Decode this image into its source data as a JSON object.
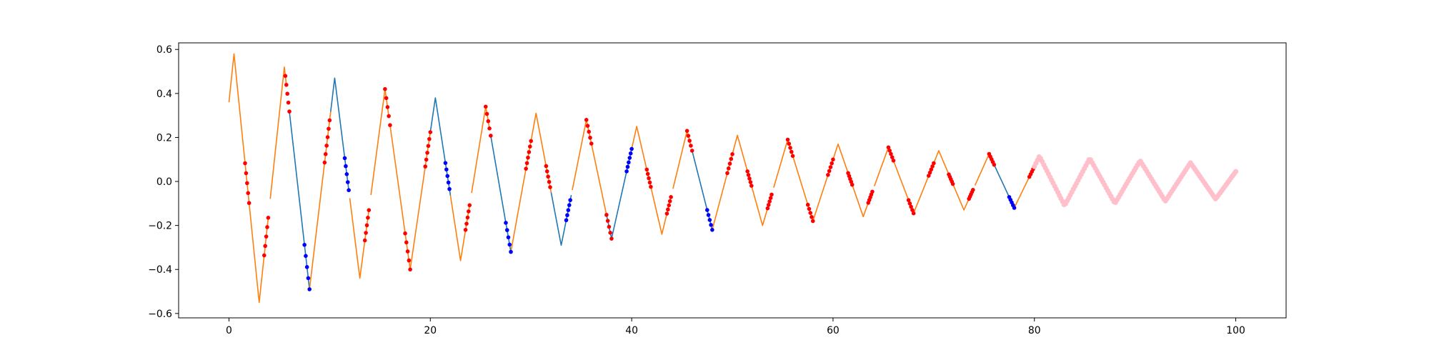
{
  "chart_data": {
    "type": "line",
    "title": "",
    "xlabel": "",
    "ylabel": "",
    "xlim": [
      -5,
      105
    ],
    "ylim": [
      -0.62,
      0.63
    ],
    "xticks": [
      0,
      20,
      40,
      60,
      80,
      100
    ],
    "yticks": [
      -0.6,
      -0.4,
      -0.2,
      0.0,
      0.2,
      0.4,
      0.6
    ],
    "xtick_labels": [
      "0",
      "20",
      "40",
      "60",
      "80",
      "100"
    ],
    "ytick_labels": [
      "−0.6",
      "−0.4",
      "−0.2",
      "0.0",
      "0.2",
      "0.4",
      "0.6"
    ],
    "grid": false,
    "legend": "none",
    "colors": {
      "orange": "#ff7f0e",
      "blue": "#1f77b4",
      "green": "#2ca02c",
      "red_marker": "#ff0000",
      "blue_marker": "#0000ff",
      "pink_marker": "#ffc0cb"
    },
    "wave": {
      "x0": 0.0,
      "x_end": 100.0,
      "peaks": [
        [
          0.0,
          0.36
        ],
        [
          0.5,
          0.58
        ],
        [
          3.0,
          -0.55
        ],
        [
          5.5,
          0.52
        ],
        [
          8.0,
          -0.49
        ],
        [
          10.5,
          0.47
        ],
        [
          13.0,
          -0.44
        ],
        [
          15.5,
          0.42
        ],
        [
          18.0,
          -0.4
        ],
        [
          20.5,
          0.38
        ],
        [
          23.0,
          -0.36
        ],
        [
          25.5,
          0.34
        ],
        [
          28.0,
          -0.32
        ],
        [
          30.5,
          0.31
        ],
        [
          33.0,
          -0.29
        ],
        [
          35.5,
          0.28
        ],
        [
          38.0,
          -0.26
        ],
        [
          40.5,
          0.25
        ],
        [
          43.0,
          -0.24
        ],
        [
          45.5,
          0.23
        ],
        [
          48.0,
          -0.22
        ],
        [
          50.5,
          0.21
        ],
        [
          53.0,
          -0.2
        ],
        [
          55.5,
          0.19
        ],
        [
          58.0,
          -0.18
        ],
        [
          60.5,
          0.17
        ],
        [
          63.0,
          -0.16
        ],
        [
          65.5,
          0.155
        ],
        [
          68.0,
          -0.145
        ],
        [
          70.5,
          0.14
        ],
        [
          73.0,
          -0.13
        ],
        [
          75.5,
          0.125
        ],
        [
          78.0,
          -0.12
        ],
        [
          80.5,
          0.115
        ],
        [
          83.0,
          -0.11
        ],
        [
          85.5,
          0.105
        ],
        [
          88.0,
          -0.1
        ],
        [
          90.5,
          0.095
        ],
        [
          93.0,
          -0.09
        ],
        [
          95.5,
          0.085
        ],
        [
          98.0,
          -0.08
        ],
        [
          100.0,
          0.045
        ]
      ]
    },
    "segments": [
      {
        "color": "orange",
        "x_range": [
          0.0,
          3.9
        ]
      },
      {
        "color": "orange",
        "x_range": [
          4.1,
          5.7
        ]
      },
      {
        "color": "blue",
        "x_range": [
          6.0,
          8.0
        ]
      },
      {
        "color": "orange",
        "x_range": [
          8.0,
          10.1
        ]
      },
      {
        "color": "blue",
        "x_range": [
          10.1,
          11.9
        ]
      },
      {
        "color": "orange",
        "x_range": [
          12.0,
          13.9
        ]
      },
      {
        "color": "orange",
        "x_range": [
          14.1,
          15.9
        ]
      },
      {
        "color": "orange",
        "x_range": [
          16.0,
          20.0
        ]
      },
      {
        "color": "blue",
        "x_range": [
          20.0,
          22.0
        ]
      },
      {
        "color": "orange",
        "x_range": [
          22.0,
          23.9
        ]
      },
      {
        "color": "orange",
        "x_range": [
          24.1,
          25.9
        ]
      },
      {
        "color": "blue",
        "x_range": [
          26.0,
          28.0
        ]
      },
      {
        "color": "orange",
        "x_range": [
          28.0,
          30.0
        ]
      },
      {
        "color": "orange",
        "x_range": [
          30.0,
          32.0
        ]
      },
      {
        "color": "blue",
        "x_range": [
          32.0,
          34.0
        ]
      },
      {
        "color": "orange",
        "x_range": [
          34.1,
          37.5
        ]
      },
      {
        "color": "blue",
        "x_range": [
          37.5,
          40.0
        ]
      },
      {
        "color": "orange",
        "x_range": [
          40.0,
          43.9
        ]
      },
      {
        "color": "orange",
        "x_range": [
          44.1,
          45.9
        ]
      },
      {
        "color": "blue",
        "x_range": [
          46.0,
          48.0
        ]
      },
      {
        "color": "orange",
        "x_range": [
          48.0,
          53.9
        ]
      },
      {
        "color": "orange",
        "x_range": [
          54.1,
          63.9
        ]
      },
      {
        "color": "orange",
        "x_range": [
          64.1,
          73.9
        ]
      },
      {
        "color": "orange",
        "x_range": [
          74.1,
          76.0
        ]
      },
      {
        "color": "blue",
        "x_range": [
          76.0,
          78.0
        ]
      },
      {
        "color": "orange",
        "x_range": [
          78.0,
          80.0
        ]
      },
      {
        "color": "green",
        "x_range": [
          80.0,
          100.0
        ]
      }
    ],
    "marker_groups": [
      {
        "color": "red_marker",
        "x_range": [
          1.6,
          2.0
        ],
        "n": 5
      },
      {
        "color": "red_marker",
        "x_range": [
          3.5,
          3.9
        ],
        "n": 5
      },
      {
        "color": "red_marker",
        "x_range": [
          5.6,
          6.0
        ],
        "n": 5
      },
      {
        "color": "blue_marker",
        "x_range": [
          7.5,
          8.0
        ],
        "n": 5
      },
      {
        "color": "red_marker",
        "x_range": [
          9.5,
          10.0
        ],
        "n": 6
      },
      {
        "color": "blue_marker",
        "x_range": [
          11.5,
          11.9
        ],
        "n": 5
      },
      {
        "color": "red_marker",
        "x_range": [
          13.5,
          13.9
        ],
        "n": 5
      },
      {
        "color": "red_marker",
        "x_range": [
          15.5,
          16.0
        ],
        "n": 5
      },
      {
        "color": "red_marker",
        "x_range": [
          17.5,
          18.0
        ],
        "n": 5
      },
      {
        "color": "red_marker",
        "x_range": [
          19.5,
          20.0
        ],
        "n": 6
      },
      {
        "color": "blue_marker",
        "x_range": [
          21.5,
          21.9
        ],
        "n": 5
      },
      {
        "color": "red_marker",
        "x_range": [
          23.5,
          23.9
        ],
        "n": 5
      },
      {
        "color": "red_marker",
        "x_range": [
          25.5,
          26.0
        ],
        "n": 5
      },
      {
        "color": "blue_marker",
        "x_range": [
          27.5,
          28.0
        ],
        "n": 5
      },
      {
        "color": "red_marker",
        "x_range": [
          29.5,
          30.0
        ],
        "n": 6
      },
      {
        "color": "red_marker",
        "x_range": [
          31.5,
          31.9
        ],
        "n": 5
      },
      {
        "color": "blue_marker",
        "x_range": [
          33.5,
          33.9
        ],
        "n": 5
      },
      {
        "color": "red_marker",
        "x_range": [
          35.5,
          36.0
        ],
        "n": 5
      },
      {
        "color": "red_marker",
        "x_range": [
          37.5,
          38.0
        ],
        "n": 5
      },
      {
        "color": "blue_marker",
        "x_range": [
          39.5,
          40.0
        ],
        "n": 6
      },
      {
        "color": "red_marker",
        "x_range": [
          41.5,
          41.9
        ],
        "n": 5
      },
      {
        "color": "red_marker",
        "x_range": [
          43.5,
          43.9
        ],
        "n": 5
      },
      {
        "color": "red_marker",
        "x_range": [
          45.5,
          46.0
        ],
        "n": 5
      },
      {
        "color": "blue_marker",
        "x_range": [
          47.5,
          48.0
        ],
        "n": 5
      },
      {
        "color": "red_marker",
        "x_range": [
          49.5,
          50.0
        ],
        "n": 5
      },
      {
        "color": "red_marker",
        "x_range": [
          51.5,
          51.9
        ],
        "n": 5
      },
      {
        "color": "red_marker",
        "x_range": [
          53.5,
          53.9
        ],
        "n": 5
      },
      {
        "color": "red_marker",
        "x_range": [
          55.5,
          56.0
        ],
        "n": 5
      },
      {
        "color": "red_marker",
        "x_range": [
          57.5,
          58.0
        ],
        "n": 5
      },
      {
        "color": "red_marker",
        "x_range": [
          59.5,
          60.0
        ],
        "n": 5
      },
      {
        "color": "red_marker",
        "x_range": [
          61.5,
          61.9
        ],
        "n": 5
      },
      {
        "color": "red_marker",
        "x_range": [
          63.5,
          63.9
        ],
        "n": 5
      },
      {
        "color": "red_marker",
        "x_range": [
          65.5,
          66.0
        ],
        "n": 5
      },
      {
        "color": "red_marker",
        "x_range": [
          67.5,
          68.0
        ],
        "n": 5
      },
      {
        "color": "red_marker",
        "x_range": [
          69.5,
          70.0
        ],
        "n": 5
      },
      {
        "color": "red_marker",
        "x_range": [
          71.5,
          71.9
        ],
        "n": 5
      },
      {
        "color": "red_marker",
        "x_range": [
          73.5,
          73.9
        ],
        "n": 5
      },
      {
        "color": "red_marker",
        "x_range": [
          75.5,
          76.0
        ],
        "n": 5
      },
      {
        "color": "blue_marker",
        "x_range": [
          77.5,
          78.0
        ],
        "n": 5
      },
      {
        "color": "red_marker",
        "x_range": [
          79.5,
          80.0
        ],
        "n": 5
      },
      {
        "color": "pink_marker",
        "x_range": [
          80.0,
          100.0
        ],
        "n": 130
      }
    ]
  }
}
